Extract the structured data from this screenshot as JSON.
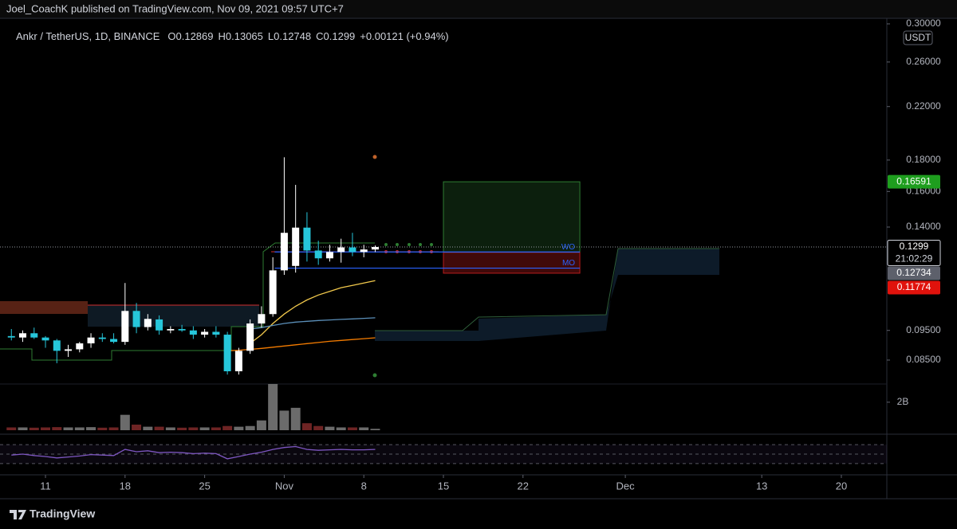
{
  "header": {
    "publisher": "Joel_CoachK published on TradingView.com, Nov 09, 2021 09:57 UTC+7",
    "brand": "TradingView"
  },
  "chart_data": {
    "type": "candlestick",
    "symbol": "Ankr / TetherUS, 1D, BINANCE",
    "ohlc_letters": [
      "O",
      "H",
      "L",
      "C"
    ],
    "change": "+0.00121 (+0.94%)",
    "currency": "USDT",
    "countdown": "21:02:29",
    "x": [
      "2021-10-08",
      "2021-10-09",
      "2021-10-10",
      "2021-10-11",
      "2021-10-12",
      "2021-10-13",
      "2021-10-14",
      "2021-10-15",
      "2021-10-16",
      "2021-10-17",
      "2021-10-18",
      "2021-10-19",
      "2021-10-20",
      "2021-10-21",
      "2021-10-22",
      "2021-10-23",
      "2021-10-24",
      "2021-10-25",
      "2021-10-26",
      "2021-10-27",
      "2021-10-28",
      "2021-10-29",
      "2021-10-30",
      "2021-10-31",
      "2021-11-01",
      "2021-11-02",
      "2021-11-03",
      "2021-11-04",
      "2021-11-05",
      "2021-11-06",
      "2021-11-07",
      "2021-11-08",
      "2021-11-09"
    ],
    "open": [
      0.093,
      0.0925,
      0.094,
      0.0925,
      0.0915,
      0.088,
      0.0885,
      0.0905,
      0.0925,
      0.092,
      0.091,
      0.1022,
      0.0962,
      0.099,
      0.095,
      0.0955,
      0.095,
      0.0935,
      0.0945,
      0.0935,
      0.0815,
      0.088,
      0.0975,
      0.101,
      0.119,
      0.121,
      0.1397,
      0.1282,
      0.1245,
      0.1275,
      0.1297,
      0.1275,
      0.12869
    ],
    "high": [
      0.0955,
      0.095,
      0.096,
      0.093,
      0.092,
      0.09,
      0.091,
      0.094,
      0.094,
      0.094,
      0.1135,
      0.1053,
      0.101,
      0.1005,
      0.0965,
      0.097,
      0.0965,
      0.0955,
      0.0965,
      0.0945,
      0.089,
      0.099,
      0.104,
      0.125,
      0.1819,
      0.164,
      0.148,
      0.133,
      0.131,
      0.134,
      0.137,
      0.131,
      0.13065
    ],
    "low": [
      0.0915,
      0.091,
      0.092,
      0.089,
      0.084,
      0.086,
      0.0875,
      0.089,
      0.091,
      0.0905,
      0.09,
      0.094,
      0.095,
      0.0935,
      0.094,
      0.0945,
      0.092,
      0.0925,
      0.0925,
      0.0805,
      0.0805,
      0.087,
      0.096,
      0.1,
      0.117,
      0.118,
      0.123,
      0.1215,
      0.123,
      0.1225,
      0.1255,
      0.125,
      0.12748
    ],
    "close": [
      0.0925,
      0.094,
      0.0925,
      0.0915,
      0.088,
      0.0885,
      0.0905,
      0.0925,
      0.092,
      0.091,
      0.1022,
      0.0962,
      0.0992,
      0.095,
      0.0955,
      0.095,
      0.0935,
      0.0945,
      0.0935,
      0.0815,
      0.088,
      0.0975,
      0.101,
      0.119,
      0.137,
      0.1397,
      0.1282,
      0.1245,
      0.1275,
      0.1297,
      0.1275,
      0.1287,
      0.1299
    ],
    "up_color": "#ffffff",
    "down_color": "#26c6da",
    "log_scale": true,
    "grid": false,
    "xlim": [
      "2021-10-07",
      "2021-12-24"
    ],
    "xticks": [
      {
        "value": "2021-10-11",
        "label": "11"
      },
      {
        "value": "2021-10-18",
        "label": "18"
      },
      {
        "value": "2021-10-25",
        "label": "25"
      },
      {
        "value": "2021-11-01",
        "label": "Nov"
      },
      {
        "value": "2021-11-08",
        "label": "8"
      },
      {
        "value": "2021-11-15",
        "label": "15"
      },
      {
        "value": "2021-11-22",
        "label": "22"
      },
      {
        "value": "2021-12-01",
        "label": "Dec"
      },
      {
        "value": "2021-12-13",
        "label": "13"
      },
      {
        "value": "2021-12-20",
        "label": "20"
      }
    ],
    "ylim": [
      0.0777,
      0.3054
    ],
    "yticks": [
      {
        "value": 0.085,
        "label": "0.08500"
      },
      {
        "value": 0.095,
        "label": "0.09500"
      },
      {
        "value": 0.14,
        "label": "0.14000"
      },
      {
        "value": 0.16,
        "label": "0.16000"
      },
      {
        "value": 0.18,
        "label": "0.18000"
      },
      {
        "value": 0.22,
        "label": "0.22000"
      },
      {
        "value": 0.26,
        "label": "0.26000"
      },
      {
        "value": 0.3,
        "label": "0.30000"
      }
    ],
    "overlays": [
      {
        "color": "#f2c94c",
        "values": [
          null,
          null,
          null,
          null,
          null,
          null,
          null,
          null,
          null,
          null,
          null,
          null,
          null,
          null,
          null,
          null,
          null,
          null,
          null,
          null,
          null,
          0.0905,
          0.0935,
          0.0975,
          0.101,
          0.104,
          0.1065,
          0.1085,
          0.11,
          0.1115,
          0.1125,
          0.1135,
          0.1145
        ]
      },
      {
        "color": "#5b8fb9",
        "values": [
          null,
          null,
          null,
          null,
          null,
          null,
          null,
          null,
          null,
          null,
          null,
          null,
          null,
          null,
          null,
          null,
          null,
          null,
          null,
          null,
          null,
          0.0955,
          0.096,
          0.0968,
          0.0975,
          0.098,
          0.0983,
          0.0986,
          0.0988,
          0.099,
          0.0992,
          0.0994,
          0.0996
        ]
      },
      {
        "color": "#f57c00",
        "values": [
          null,
          null,
          null,
          null,
          null,
          null,
          null,
          null,
          null,
          null,
          null,
          null,
          null,
          null,
          null,
          null,
          null,
          null,
          null,
          0.088,
          0.0882,
          0.0885,
          0.0888,
          0.0892,
          0.0896,
          0.09,
          0.0904,
          0.0908,
          0.0912,
          0.0915,
          0.0918,
          0.0921,
          0.0924
        ]
      }
    ],
    "position": {
      "start": "2021-11-15",
      "end": "2021-11-27",
      "entry": 0.12734,
      "target": 0.16591,
      "stop": 0.11774
    },
    "levels": [
      {
        "label": "WO",
        "value": 0.1275,
        "start": "2021-11-01",
        "end": "2021-11-27"
      },
      {
        "label": "MO",
        "value": 0.12,
        "start": "2021-11-01",
        "end": "2021-11-27"
      }
    ],
    "volume": {
      "values": [
        200000000,
        200000000,
        180000000,
        200000000,
        220000000,
        200000000,
        200000000,
        220000000,
        180000000,
        200000000,
        1100000000,
        400000000,
        250000000,
        250000000,
        200000000,
        180000000,
        200000000,
        200000000,
        200000000,
        300000000,
        250000000,
        300000000,
        700000000,
        3300000000,
        1400000000,
        1600000000,
        500000000,
        300000000,
        250000000,
        200000000,
        200000000,
        200000000,
        100000000
      ],
      "ylim": [
        0,
        3300000000
      ],
      "yticks": [
        {
          "value": 2000000000,
          "label": "2B"
        }
      ]
    },
    "rsi": {
      "values": [
        48,
        50,
        47,
        45,
        42,
        44,
        46,
        49,
        48,
        47,
        60,
        55,
        57,
        53,
        54,
        53,
        51,
        52,
        51,
        40,
        45,
        50,
        54,
        60,
        64,
        66,
        60,
        58,
        59,
        60,
        59,
        59,
        60
      ],
      "ylim": [
        13,
        87
      ],
      "levels": [
        30,
        50,
        70
      ],
      "color": "#7e57c2"
    }
  }
}
